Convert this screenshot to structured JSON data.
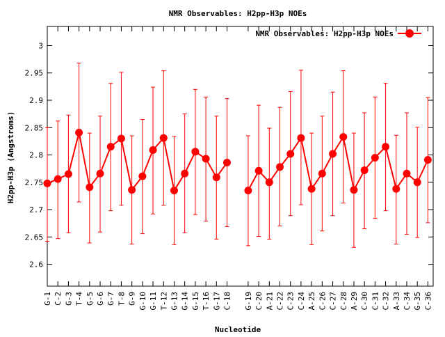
{
  "chart_data": {
    "type": "line",
    "title": "NMR Observables: H2pp-H3p NOEs",
    "xlabel": "Nucleotide",
    "ylabel": "H2pp-H3p (Angstroms)",
    "ylim": [
      2.56,
      3.035
    ],
    "yticks": [
      2.6,
      2.65,
      2.7,
      2.75,
      2.8,
      2.85,
      2.9,
      2.95,
      3
    ],
    "ytick_labels": [
      "2.6",
      "2.65",
      "2.7",
      "2.75",
      "2.8",
      "2.85",
      "2.9",
      "2.95",
      "3"
    ],
    "legend_position": "top-right",
    "grid": false,
    "categories": [
      "G-1",
      "C-2",
      "G-3",
      "T-4",
      "G-5",
      "G-6",
      "G-7",
      "T-8",
      "G-9",
      "G-10",
      "G-11",
      "T-12",
      "G-13",
      "G-14",
      "G-15",
      "T-16",
      "G-17",
      "C-18",
      "G-19",
      "C-20",
      "A-21",
      "C-22",
      "C-23",
      "C-24",
      "A-25",
      "C-26",
      "C-27",
      "C-28",
      "A-29",
      "C-30",
      "C-31",
      "C-32",
      "A-33",
      "C-34",
      "G-35",
      "C-36"
    ],
    "series": [
      {
        "name": "NMR Observables: H2pp-H3p NOEs",
        "color": "#ff0000",
        "segments": [
          [
            0,
            17
          ],
          [
            18,
            35
          ]
        ],
        "values": [
          2.748,
          2.756,
          2.765,
          2.841,
          2.741,
          2.766,
          2.815,
          2.83,
          2.736,
          2.761,
          2.809,
          2.831,
          2.735,
          2.766,
          2.806,
          2.793,
          2.759,
          2.786,
          2.735,
          2.771,
          2.75,
          2.778,
          2.802,
          2.831,
          2.738,
          2.766,
          2.802,
          2.833,
          2.736,
          2.772,
          2.795,
          2.815,
          2.738,
          2.766,
          2.75,
          2.791
        ],
        "err_low": [
          2.642,
          2.647,
          2.658,
          2.714,
          2.639,
          2.659,
          2.698,
          2.708,
          2.637,
          2.656,
          2.692,
          2.708,
          2.636,
          2.658,
          2.691,
          2.679,
          2.646,
          2.669,
          2.634,
          2.651,
          2.646,
          2.67,
          2.689,
          2.709,
          2.636,
          2.661,
          2.689,
          2.712,
          2.631,
          2.665,
          2.684,
          2.698,
          2.637,
          2.655,
          2.649,
          2.676
        ],
        "err_high": [
          2.85,
          2.862,
          2.873,
          2.968,
          2.84,
          2.871,
          2.931,
          2.951,
          2.835,
          2.865,
          2.924,
          2.954,
          2.834,
          2.875,
          2.92,
          2.906,
          2.871,
          2.903,
          2.835,
          2.891,
          2.849,
          2.887,
          2.916,
          2.955,
          2.84,
          2.871,
          2.915,
          2.954,
          2.84,
          2.877,
          2.906,
          2.931,
          2.836,
          2.877,
          2.851,
          2.905
        ]
      }
    ]
  }
}
